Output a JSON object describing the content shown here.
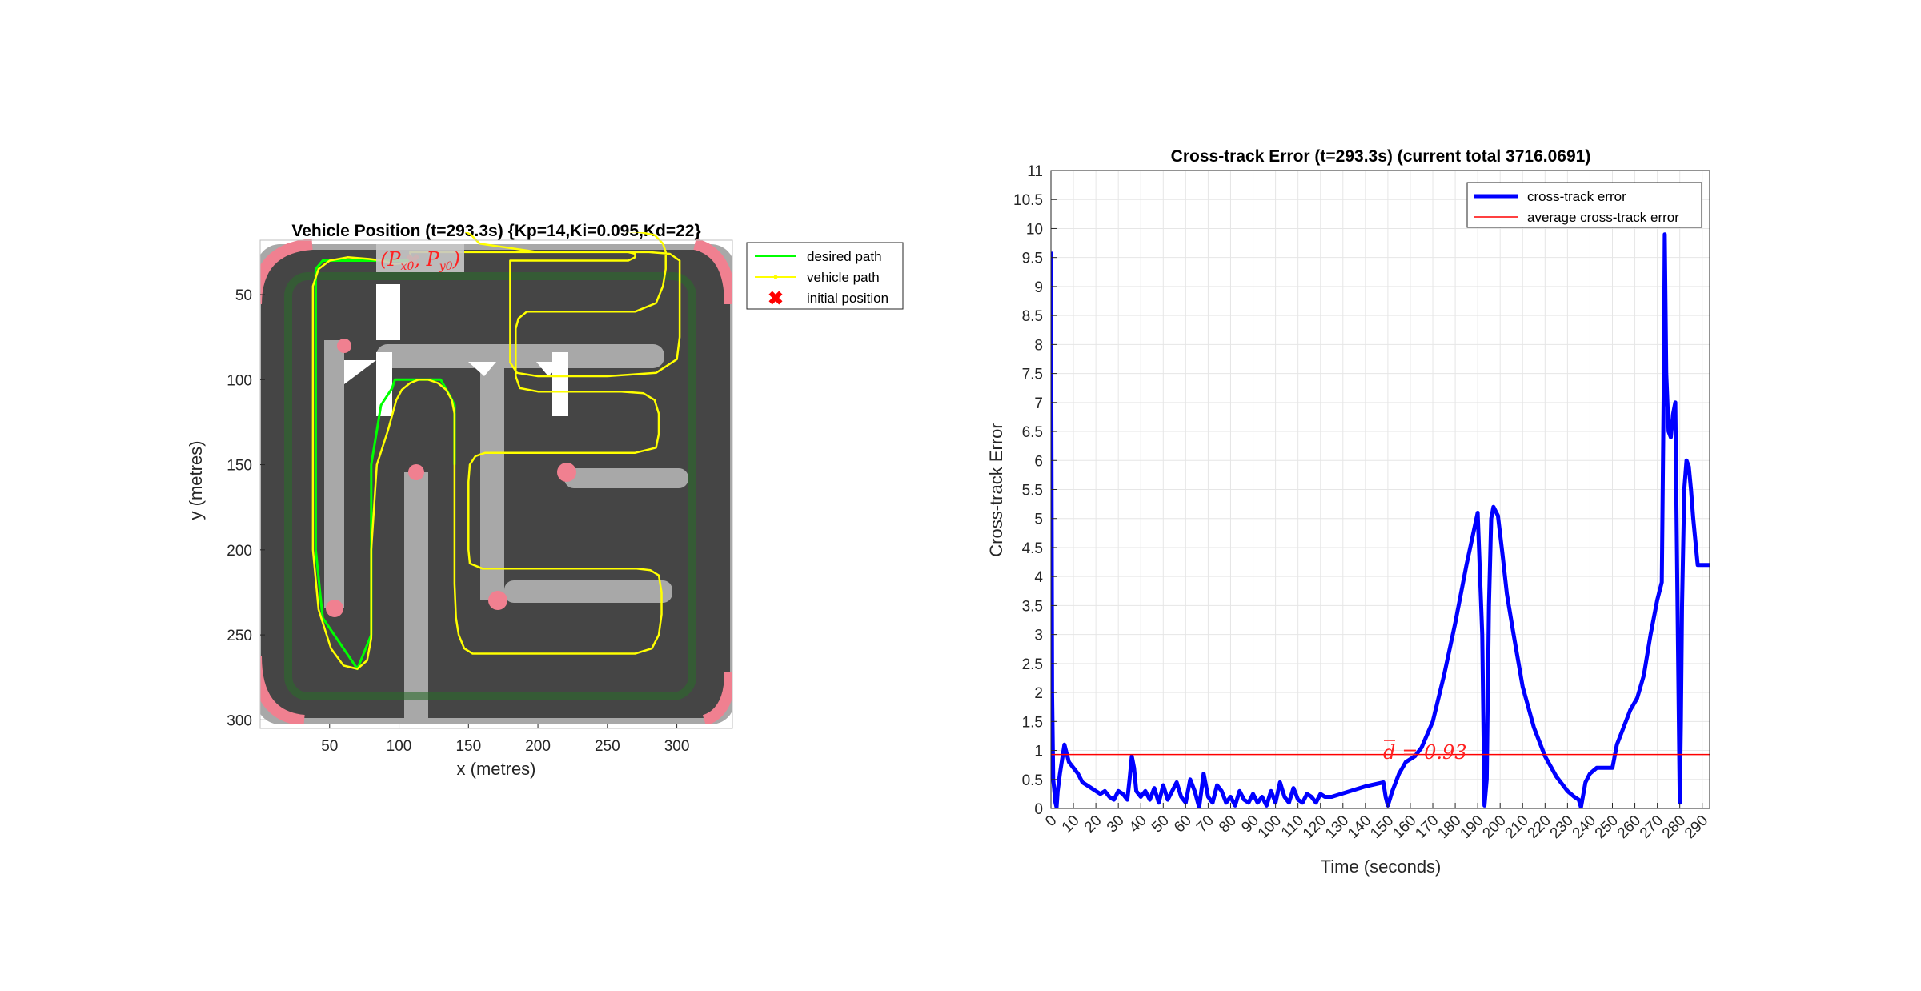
{
  "chart_data": [
    {
      "type": "line",
      "title": "Vehicle Position (t=293.3s) {Kp=14,Ki=0.095,Kd=22}",
      "xlabel": "x (metres)",
      "ylabel": "y (metres)",
      "xlim": [
        0,
        340
      ],
      "ylim": [
        305,
        18
      ],
      "y_reversed": true,
      "xticks": [
        50,
        100,
        150,
        200,
        250,
        300
      ],
      "yticks": [
        50,
        100,
        150,
        200,
        250,
        300
      ],
      "background": "race-track-map",
      "legend": {
        "position": "outside-top-right",
        "entries": [
          "desired path",
          "vehicle path",
          "initial position"
        ]
      },
      "annotation": {
        "text": "(P_x0, P_y0)",
        "x": 112,
        "y": 22
      },
      "initial_position": {
        "x": 110,
        "y": 30
      },
      "series": [
        {
          "name": "desired path",
          "color": "#00ff00",
          "x": [
            110,
            45,
            40,
            40,
            40,
            40,
            45,
            70,
            80,
            80,
            80,
            87,
            95,
            97,
            105,
            113,
            120,
            130,
            137,
            140,
            140
          ],
          "y": [
            30,
            30,
            35,
            100,
            150,
            200,
            240,
            270,
            250,
            200,
            150,
            115,
            105,
            100,
            100,
            100,
            100,
            100,
            110,
            115,
            150
          ]
        },
        {
          "name": "vehicle path",
          "color": "#ffff00",
          "x": [
            110,
            96,
            88,
            78,
            63,
            50,
            42,
            38,
            38,
            38,
            38,
            38,
            42,
            51,
            60,
            70,
            77,
            80,
            80,
            80,
            82,
            84,
            88,
            92,
            95,
            98,
            102,
            108,
            114,
            121,
            128,
            134,
            138,
            140,
            140,
            140,
            140,
            141,
            143,
            147,
            153,
            200,
            248,
            270,
            282,
            287,
            289,
            289,
            287,
            281,
            271,
            250,
            200,
            160,
            151,
            150,
            150,
            150,
            151,
            155,
            162,
            180,
            200,
            230,
            270,
            285,
            287,
            287,
            284,
            276,
            260,
            220,
            200,
            187,
            184,
            184,
            184,
            186,
            192,
            230,
            270,
            285,
            290,
            292,
            292,
            290,
            284,
            272,
            240,
            200,
            160,
            150,
            147,
            147,
            147,
            147,
            147,
            147,
            148,
            152,
            158,
            200,
            240,
            265,
            270,
            270,
            265,
            259,
            245,
            200,
            185,
            180,
            180,
            180,
            180,
            180,
            180,
            180,
            185,
            200,
            250,
            285,
            300,
            302,
            302,
            302,
            302,
            295,
            280,
            250,
            200,
            150,
            115,
            108,
            108,
            110,
            110,
            112
          ],
          "y": [
            31,
            32,
            30,
            29,
            28,
            30,
            35,
            45,
            80,
            120,
            160,
            200,
            235,
            258,
            268,
            270,
            265,
            252,
            230,
            200,
            175,
            150,
            140,
            130,
            121,
            112,
            106,
            102,
            100,
            100,
            102,
            106,
            112,
            120,
            150,
            190,
            220,
            240,
            250,
            258,
            261,
            261,
            261,
            261,
            258,
            250,
            238,
            225,
            215,
            212,
            211,
            211,
            211,
            211,
            208,
            200,
            180,
            160,
            150,
            145,
            143,
            143,
            143,
            143,
            143,
            140,
            132,
            120,
            112,
            108,
            107,
            107,
            107,
            105,
            98,
            80,
            70,
            64,
            60,
            60,
            60,
            55,
            45,
            35,
            25,
            20,
            15,
            13,
            12,
            12,
            12,
            12,
            12,
            12,
            12,
            12,
            12,
            12,
            13,
            15,
            20,
            25,
            25,
            25,
            26,
            28,
            30,
            30,
            30,
            30,
            30,
            30,
            35,
            45,
            60,
            72,
            80,
            90,
            96,
            98,
            98,
            96,
            88,
            75,
            55,
            40,
            30,
            26,
            25,
            25,
            25,
            25,
            25,
            25,
            27,
            29,
            30,
            31
          ]
        }
      ]
    },
    {
      "type": "line",
      "title": "Cross-track Error (t=293.3s) (current total 3716.0691)",
      "xlabel": "Time (seconds)",
      "ylabel": "Cross-track Error",
      "xlim": [
        0,
        293.3
      ],
      "ylim": [
        0,
        11
      ],
      "grid": true,
      "xticks": [
        0,
        10,
        20,
        30,
        40,
        50,
        60,
        70,
        80,
        90,
        100,
        110,
        120,
        130,
        140,
        150,
        160,
        170,
        180,
        190,
        200,
        210,
        220,
        230,
        240,
        250,
        260,
        270,
        280,
        290
      ],
      "yticks": [
        0,
        0.5,
        1,
        1.5,
        2,
        2.5,
        3,
        3.5,
        4,
        4.5,
        5,
        5.5,
        6,
        6.5,
        7,
        7.5,
        8,
        8.5,
        9,
        9.5,
        10,
        10.5,
        11
      ],
      "legend": {
        "position": "top-right",
        "entries": [
          "cross-track error",
          "average cross-track error"
        ]
      },
      "annotation": {
        "text": "d̄ = 0.93",
        "x": 152,
        "y": 0.93
      },
      "series": [
        {
          "name": "cross-track error",
          "color": "#0000ff",
          "x": [
            0,
            0.5,
            1,
            2,
            2.5,
            3,
            4,
            5,
            6,
            7,
            8,
            10,
            12,
            14,
            16,
            18,
            20,
            22,
            24,
            26,
            28,
            30,
            32,
            34,
            35,
            36,
            37,
            38,
            40,
            42,
            44,
            46,
            48,
            50,
            52,
            54,
            56,
            58,
            60,
            62,
            64,
            66,
            68,
            70,
            72,
            74,
            76,
            78,
            80,
            82,
            84,
            86,
            88,
            90,
            92,
            94,
            96,
            98,
            100,
            102,
            104,
            106,
            108,
            110,
            112,
            114,
            116,
            118,
            120,
            122,
            125,
            140,
            148,
            149,
            150,
            152,
            155,
            158,
            160,
            162,
            165,
            170,
            175,
            180,
            185,
            190,
            192,
            193,
            194,
            195,
            196,
            197,
            199,
            201,
            203,
            206,
            210,
            215,
            220,
            225,
            230,
            233,
            235,
            236,
            238,
            240,
            243,
            246,
            250,
            252,
            255,
            258,
            261,
            264,
            267,
            270,
            272,
            273,
            273.3,
            274,
            275,
            276,
            277,
            278,
            279,
            280,
            280.5,
            281,
            282,
            283,
            284,
            285,
            286,
            287,
            288,
            289,
            290,
            291,
            292,
            293.3
          ],
          "y": [
            9.6,
            2,
            0.5,
            0.1,
            0.02,
            0.3,
            0.6,
            0.85,
            1.1,
            0.95,
            0.8,
            0.7,
            0.6,
            0.45,
            0.4,
            0.35,
            0.3,
            0.25,
            0.3,
            0.2,
            0.15,
            0.3,
            0.25,
            0.15,
            0.5,
            0.9,
            0.7,
            0.3,
            0.2,
            0.3,
            0.15,
            0.35,
            0.1,
            0.4,
            0.15,
            0.3,
            0.45,
            0.2,
            0.1,
            0.5,
            0.3,
            0.02,
            0.6,
            0.2,
            0.1,
            0.4,
            0.3,
            0.1,
            0.2,
            0.05,
            0.3,
            0.15,
            0.1,
            0.25,
            0.1,
            0.2,
            0.05,
            0.3,
            0.1,
            0.45,
            0.2,
            0.1,
            0.35,
            0.15,
            0.1,
            0.25,
            0.2,
            0.1,
            0.25,
            0.2,
            0.2,
            0.38,
            0.45,
            0.2,
            0.05,
            0.3,
            0.6,
            0.8,
            0.85,
            0.9,
            1.05,
            1.5,
            2.3,
            3.2,
            4.2,
            5.1,
            3,
            0.05,
            0.5,
            3.5,
            5.0,
            5.2,
            5.05,
            4.4,
            3.7,
            3.0,
            2.1,
            1.4,
            0.9,
            0.55,
            0.3,
            0.2,
            0.15,
            0.02,
            0.45,
            0.6,
            0.7,
            0.7,
            0.7,
            1.1,
            1.4,
            1.7,
            1.9,
            2.3,
            3.0,
            3.6,
            3.9,
            7.8,
            9.9,
            7.5,
            6.5,
            6.4,
            6.8,
            7.0,
            3.5,
            0.1,
            1.5,
            3.5,
            5.5,
            6.0,
            5.9,
            5.5,
            5.0,
            4.6,
            4.2,
            4.2,
            4.2,
            4.2,
            4.2,
            4.2
          ]
        },
        {
          "name": "average cross-track error",
          "color": "#ff0000",
          "constant": 0.93
        }
      ]
    }
  ]
}
